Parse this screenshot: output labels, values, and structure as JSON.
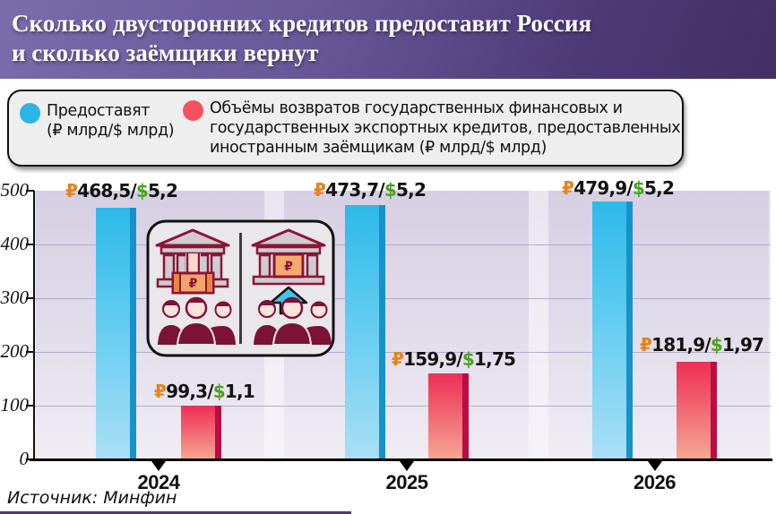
{
  "header": {
    "title_line1": "Сколько двусторонних кредитов предоставит Россия",
    "title_line2": "и сколько заёмщики вернут"
  },
  "legend": {
    "provide": {
      "label_line1": "Предоставят",
      "label_line2": "(₽ млрд/$ млрд)",
      "color": "#2ab6e5"
    },
    "returns": {
      "label": "Объёмы возвратов государственных финансовых и государственных экспортных кредитов, предоставленных иностранным заёмщикам (₽ млрд/$ млрд)",
      "color": "#f4525f"
    }
  },
  "chart_data": {
    "type": "bar",
    "title": "Сколько двусторонних кредитов предоставит Россия и сколько заёмщики вернут",
    "categories": [
      "2024",
      "2025",
      "2026"
    ],
    "series": [
      {
        "name": "Предоставят (₽ млрд/$ млрд)",
        "values": [
          468.5,
          473.7,
          479.9
        ],
        "color": "#2db9e9"
      },
      {
        "name": "Объёмы возвратов государственных финансовых и государственных экспортных кредитов (₽ млрд/$ млрд)",
        "values": [
          99.3,
          159.9,
          181.9
        ],
        "color": "#ee2f56"
      }
    ],
    "groups": [
      {
        "year": "2024",
        "provide": {
          "value": 468.5,
          "rub": "468,5",
          "usd": "5,2"
        },
        "return": {
          "value": 99.3,
          "rub": "99,3",
          "usd": "1,1"
        }
      },
      {
        "year": "2025",
        "provide": {
          "value": 473.7,
          "rub": "473,7",
          "usd": "5,2"
        },
        "return": {
          "value": 159.9,
          "rub": "159,9",
          "usd": "1,75"
        }
      },
      {
        "year": "2026",
        "provide": {
          "value": 479.9,
          "rub": "479,9",
          "usd": "5,2"
        },
        "return": {
          "value": 181.9,
          "rub": "181,9",
          "usd": "1,97"
        }
      }
    ],
    "ylim": [
      0,
      500
    ],
    "yticks": [
      0,
      100,
      200,
      300,
      400,
      500
    ],
    "grid": true,
    "legend_position": "top",
    "rub_symbol": "₽",
    "usd_symbol": "$",
    "rub_symbol_color": "#e8821c",
    "usd_symbol_color": "#4ba024"
  },
  "illustration": {
    "left_icon": "bank-giving-money-to-people",
    "right_icon": "people-returning-money-to-bank",
    "currency_glyph": "₽"
  },
  "source": "Источник: Минфин",
  "colors": {
    "header_gradient_start": "#7a6ba9",
    "header_gradient_end": "#413063",
    "provide_bar": "#2db9e9",
    "provide_bar_edge": "#1792c9",
    "return_bar": "#ee2f56",
    "return_bar_edge": "#bc0c44",
    "plot_panel": "#d6cfe3"
  }
}
